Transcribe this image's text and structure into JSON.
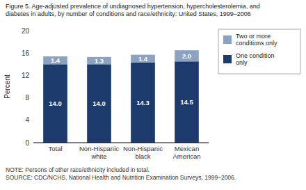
{
  "chart_data": {
    "type": "bar",
    "stacked": true,
    "title": "Figure 5. Age-adjusted prevalence of undiagnosed hypertension, hypercholesterolemia, and\ndiabetes in adults, by number of conditions and race/ethnicity: United States, 1999–2006",
    "categories": [
      "Total",
      "Non-Hispanic\nwhite",
      "Non-Hispanic\nblack",
      "Mexican\nAmerican"
    ],
    "series": [
      {
        "name": "One condition\nonly",
        "color": "#1c3a6b",
        "values": [
          14.0,
          14.0,
          14.3,
          14.5
        ],
        "value_labels": [
          "14.0",
          "14.0",
          "14.3",
          "14.5"
        ]
      },
      {
        "name": "Two or more\nconditions only",
        "color": "#8ba3c0",
        "values": [
          1.4,
          1.3,
          1.4,
          2.0
        ],
        "value_labels": [
          "1.4",
          "1.3",
          "1.4",
          "2.0"
        ]
      }
    ],
    "ylabel": "Percent",
    "ylim": [
      0,
      20
    ],
    "yticks": [
      0,
      4,
      8,
      12,
      16,
      20
    ],
    "grid": false,
    "legend": "right",
    "data_labels": true,
    "annotations": [
      "NOTE: Persons of other race/ethnicity included in total.",
      "SOURCE: CDC/NCHS, National Health and Nutrition Examination Surveys, 1999–2006."
    ]
  }
}
